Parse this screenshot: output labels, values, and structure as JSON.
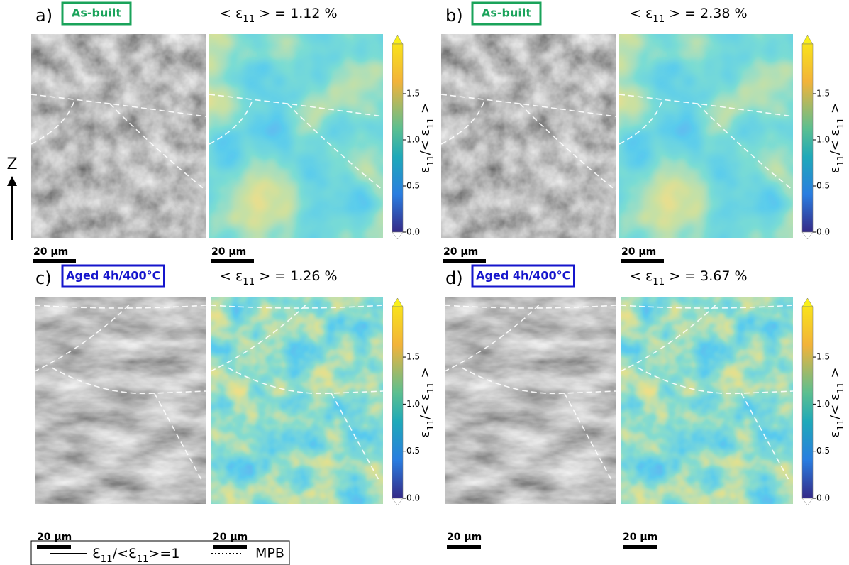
{
  "figure": {
    "axis_label": "Z",
    "colorbar_label": [
      "ε",
      "11",
      "/< ε",
      "11",
      " >"
    ],
    "panels": [
      {
        "label": "a)",
        "tag": "As-built",
        "tag_color": "#1aa35a",
        "mean": [
          "< ε",
          "11",
          " > = 1.12 %"
        ],
        "ticks": [
          "0.0",
          "0.5",
          "1.0",
          "1.5"
        ],
        "scale_bars": [
          "20 µm",
          "20 µm"
        ]
      },
      {
        "label": "b)",
        "tag": "As-built",
        "tag_color": "#1aa35a",
        "mean": [
          "< ε",
          "11",
          " > = 2.38 %"
        ],
        "ticks": [
          "0.0",
          "0.5",
          "1.0",
          "1.5"
        ],
        "scale_bars": [
          "20 µm",
          "20 µm"
        ]
      },
      {
        "label": "c)",
        "tag": "Aged 4h/400°C",
        "tag_color": "#1515cc",
        "mean": [
          "< ε",
          "11",
          " > = 1.26 %"
        ],
        "ticks": [
          "0.0",
          "0.5",
          "1.0",
          "1.5"
        ],
        "scale_bars": [
          "20 µm",
          "20 µm"
        ]
      },
      {
        "label": "d)",
        "tag": "Aged 4h/400°C",
        "tag_color": "#1515cc",
        "mean": [
          "< ε",
          "11",
          " > = 3.67 %"
        ],
        "ticks": [
          "0.0",
          "0.5",
          "1.0",
          "1.5"
        ],
        "scale_bars": [
          "20 µm",
          "20 µm"
        ]
      }
    ],
    "legend": {
      "solid": [
        "Ɛ",
        "11",
        "/<Ɛ",
        "11",
        ">=1"
      ],
      "dotted": "MPB"
    }
  }
}
